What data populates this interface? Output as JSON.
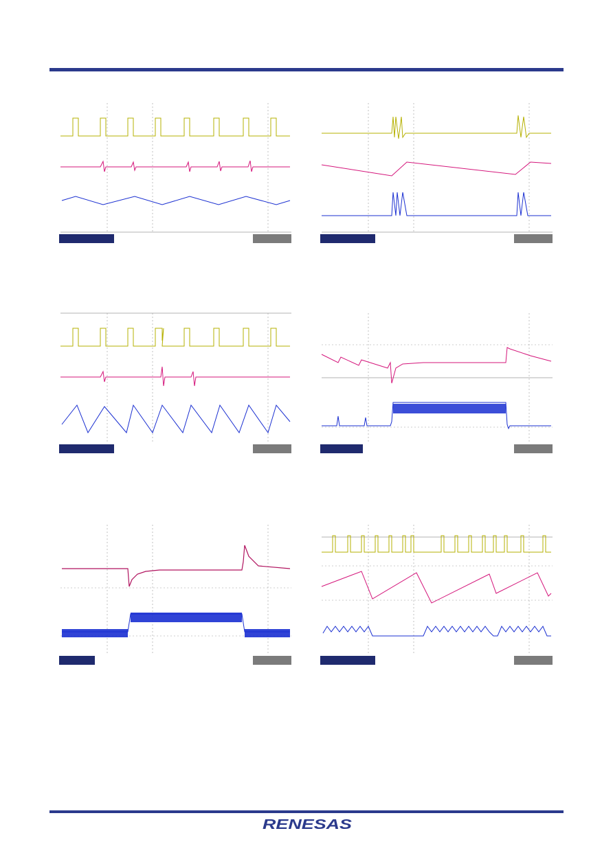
{
  "footer": {
    "logo_text": "RENESAS",
    "logo_color": "#2b3a8c"
  },
  "colors": {
    "channel_1": "#b5b000",
    "channel_2": "#d4147a",
    "channel_3": "#1a2fd1",
    "grid": "#9a9a9a",
    "rule": "#2b3a8c"
  }
}
